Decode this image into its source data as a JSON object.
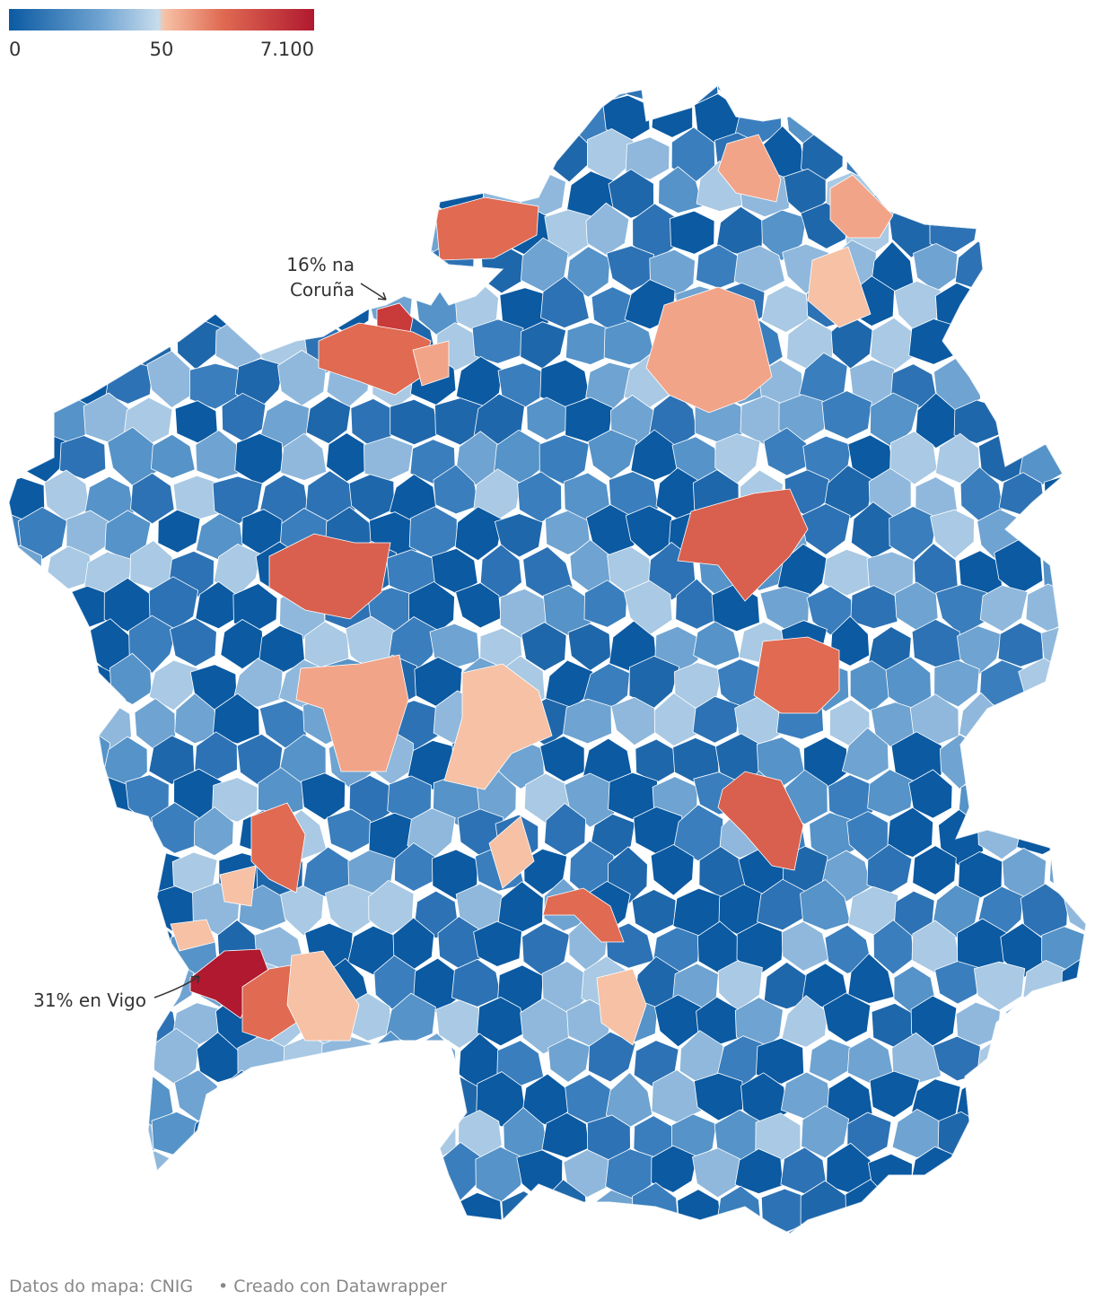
{
  "legend": {
    "ticks": [
      0,
      50,
      {
        "value": 7100,
        "label": "7.100"
      }
    ]
  },
  "annotations": [
    {
      "lines": [
        "16% na",
        "Coruña"
      ]
    },
    {
      "lines": [
        "31% en Vigo"
      ]
    }
  ],
  "footer": {
    "source": "Datos do mapa: CNIG",
    "credit": "• Creado con Datawrapper"
  }
}
